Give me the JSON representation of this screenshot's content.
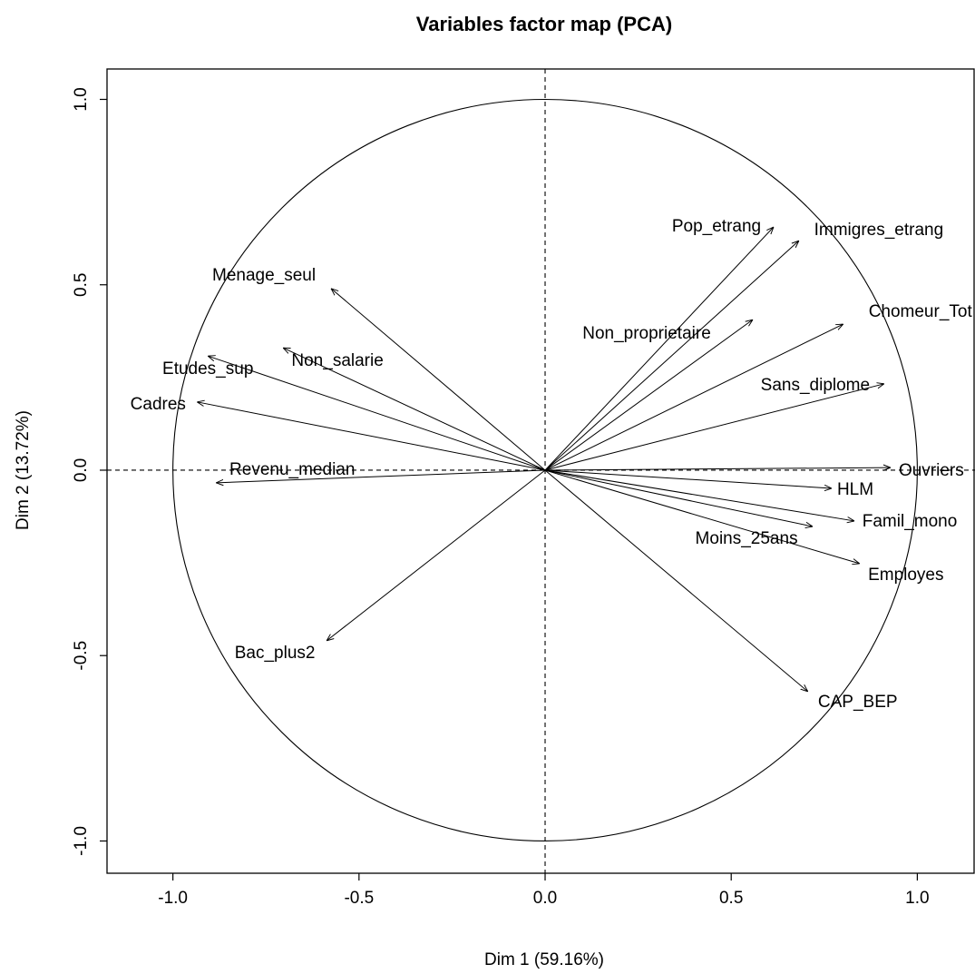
{
  "chart_data": {
    "type": "arrows",
    "title": "Variables factor map (PCA)",
    "x_label": "Dim 1 (59.16%)",
    "y_label": "Dim 2 (13.72%)",
    "categories": [
      "Pop_etrang",
      "Immigres_etrang",
      "Non_proprietaire",
      "Chomeur_Tot",
      "Sans_diplome",
      "Ouvriers",
      "HLM",
      "Famil_mono",
      "Moins_25ans",
      "Employes",
      "CAP_BEP",
      "Bac_plus2",
      "Revenu_median",
      "Cadres",
      "Etudes_sup",
      "Non_salarie",
      "Menage_seul"
    ],
    "x": [
      0.614,
      0.682,
      0.558,
      0.801,
      0.911,
      0.928,
      0.77,
      0.831,
      0.719,
      0.845,
      0.706,
      -0.587,
      -0.884,
      -0.935,
      -0.906,
      -0.704,
      -0.575
    ],
    "values": [
      0.656,
      0.619,
      0.406,
      0.394,
      0.233,
      0.007,
      -0.049,
      -0.137,
      -0.152,
      -0.252,
      -0.597,
      -0.46,
      -0.034,
      0.184,
      0.308,
      0.33,
      0.49
    ],
    "color": "#000000",
    "xlim": [
      -1.177,
      1.155
    ],
    "ylim": [
      -1.087,
      1.082
    ],
    "xticks": [
      {
        "value": -1,
        "label": "-1.0"
      },
      -0.5,
      {
        "value": 0,
        "label": "0.0"
      },
      0.5,
      {
        "value": 1,
        "label": "1.0"
      }
    ],
    "yticks": [
      {
        "value": -1,
        "label": "-1.0"
      },
      -0.5,
      {
        "value": 0,
        "label": "0.0"
      },
      0.5,
      {
        "value": 1,
        "label": "1.0"
      }
    ]
  }
}
